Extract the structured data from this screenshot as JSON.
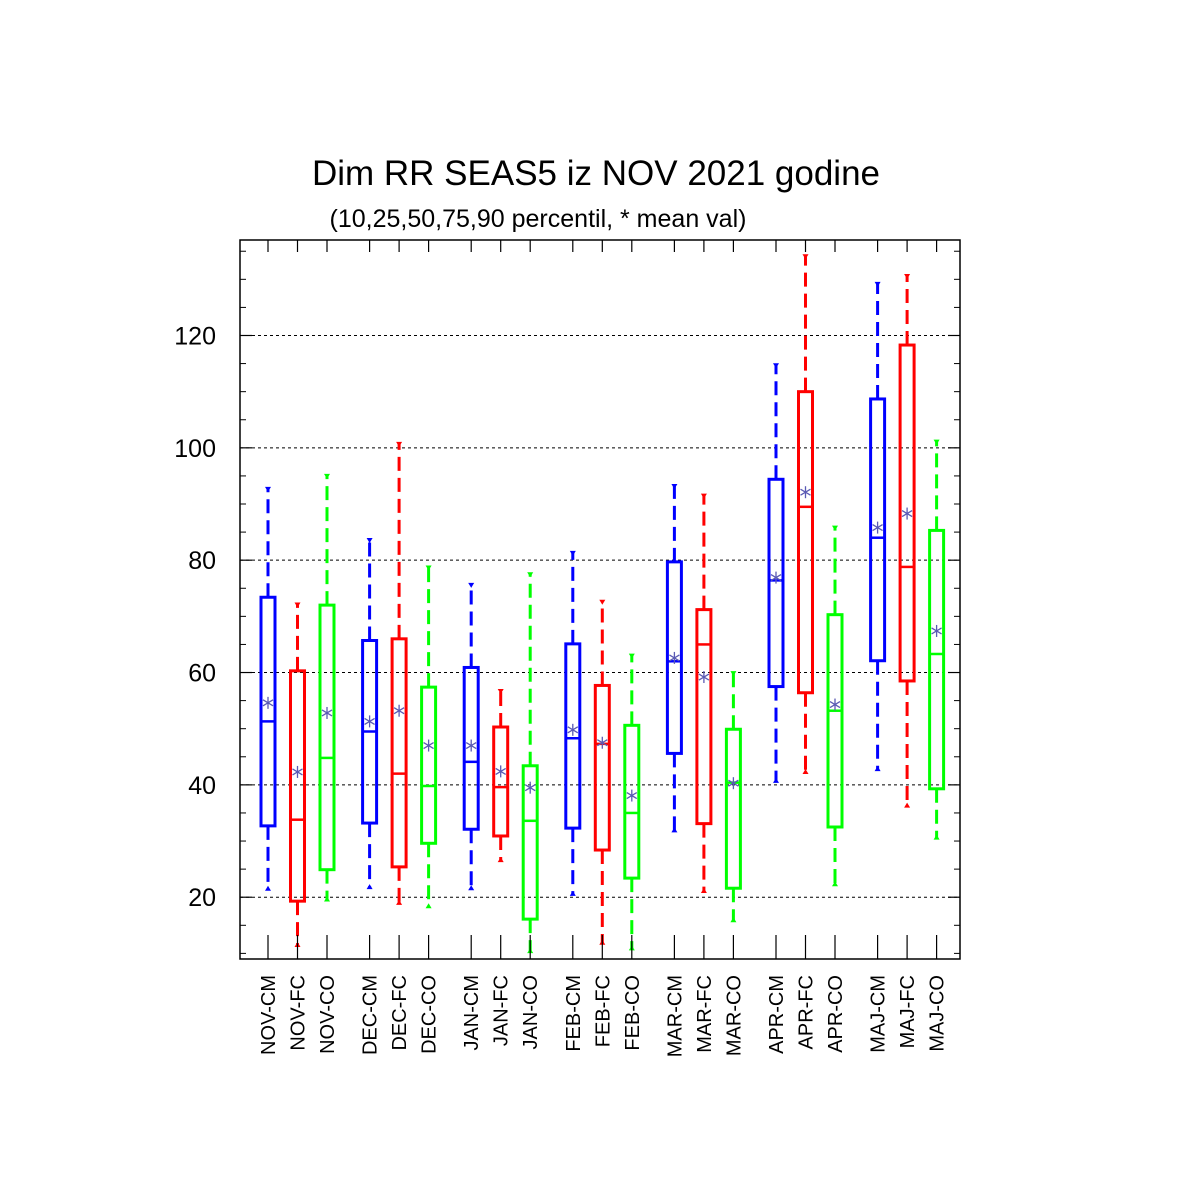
{
  "chart_data": {
    "type": "box",
    "title": "Dim RR SEAS5 iz NOV 2021 godine",
    "subtitle": "(10,25,50,75,90 percentil, * mean val)",
    "xlabel": "",
    "ylabel": "",
    "ylim": [
      9,
      137
    ],
    "yticks": [
      20,
      40,
      60,
      80,
      100,
      120
    ],
    "grid": true,
    "series_colors": {
      "CM": "#0000ff",
      "FC": "#ff0000",
      "CO": "#00ff00"
    },
    "mean_marker_color": "#5a5ab4",
    "groups": [
      "NOV",
      "DEC",
      "JAN",
      "FEB",
      "MAR",
      "APR",
      "MAJ"
    ],
    "boxes": [
      {
        "label": "NOV-CM",
        "group": 0,
        "slot": 0,
        "series": "CM",
        "p10": 21.5,
        "p25": 32.7,
        "p50": 51.3,
        "p75": 73.4,
        "p90": 92.7,
        "mean": 54.6
      },
      {
        "label": "NOV-FC",
        "group": 0,
        "slot": 1,
        "series": "FC",
        "p10": 11.5,
        "p25": 19.3,
        "p50": 33.8,
        "p75": 60.3,
        "p90": 72.1,
        "mean": 42.3
      },
      {
        "label": "NOV-CO",
        "group": 0,
        "slot": 2,
        "series": "CO",
        "p10": 19.6,
        "p25": 24.9,
        "p50": 44.8,
        "p75": 72.0,
        "p90": 95.0,
        "mean": 52.8
      },
      {
        "label": "DEC-CM",
        "group": 1,
        "slot": 0,
        "series": "CM",
        "p10": 21.8,
        "p25": 33.2,
        "p50": 49.5,
        "p75": 65.7,
        "p90": 83.6,
        "mean": 51.3
      },
      {
        "label": "DEC-FC",
        "group": 1,
        "slot": 1,
        "series": "FC",
        "p10": 19.0,
        "p25": 25.4,
        "p50": 42.0,
        "p75": 66.0,
        "p90": 100.7,
        "mean": 53.2
      },
      {
        "label": "DEC-CO",
        "group": 1,
        "slot": 2,
        "series": "CO",
        "p10": 18.4,
        "p25": 29.6,
        "p50": 39.8,
        "p75": 57.4,
        "p90": 78.7,
        "mean": 47.0
      },
      {
        "label": "JAN-CM",
        "group": 2,
        "slot": 0,
        "series": "CM",
        "p10": 21.6,
        "p25": 32.1,
        "p50": 44.1,
        "p75": 60.9,
        "p90": 75.6,
        "mean": 47.0
      },
      {
        "label": "JAN-FC",
        "group": 2,
        "slot": 1,
        "series": "FC",
        "p10": 26.6,
        "p25": 30.9,
        "p50": 39.6,
        "p75": 50.3,
        "p90": 56.7,
        "mean": 42.4
      },
      {
        "label": "JAN-CO",
        "group": 2,
        "slot": 2,
        "series": "CO",
        "p10": 10.4,
        "p25": 16.1,
        "p50": 33.6,
        "p75": 43.4,
        "p90": 77.5,
        "mean": 39.5
      },
      {
        "label": "FEB-CM",
        "group": 3,
        "slot": 0,
        "series": "CM",
        "p10": 20.6,
        "p25": 32.3,
        "p50": 48.3,
        "p75": 65.1,
        "p90": 81.3,
        "mean": 49.8
      },
      {
        "label": "FEB-FC",
        "group": 3,
        "slot": 1,
        "series": "FC",
        "p10": 11.9,
        "p25": 28.4,
        "p50": 47.3,
        "p75": 57.7,
        "p90": 72.6,
        "mean": 47.5
      },
      {
        "label": "FEB-CO",
        "group": 3,
        "slot": 2,
        "series": "CO",
        "p10": 10.9,
        "p25": 23.4,
        "p50": 35.0,
        "p75": 50.6,
        "p90": 63.0,
        "mean": 38.1
      },
      {
        "label": "MAR-CM",
        "group": 4,
        "slot": 0,
        "series": "CM",
        "p10": 31.9,
        "p25": 45.6,
        "p50": 62.0,
        "p75": 79.7,
        "p90": 93.2,
        "mean": 62.6
      },
      {
        "label": "MAR-FC",
        "group": 4,
        "slot": 1,
        "series": "FC",
        "p10": 21.1,
        "p25": 33.1,
        "p50": 65.0,
        "p75": 71.2,
        "p90": 91.5,
        "mean": 59.2
      },
      {
        "label": "MAR-CO",
        "group": 4,
        "slot": 2,
        "series": "CO",
        "p10": 15.9,
        "p25": 21.6,
        "p50": 40.4,
        "p75": 49.9,
        "p90": 59.9,
        "mean": 40.3
      },
      {
        "label": "APR-CM",
        "group": 5,
        "slot": 0,
        "series": "CM",
        "p10": 40.7,
        "p25": 57.5,
        "p50": 76.4,
        "p75": 94.4,
        "p90": 114.7,
        "mean": 76.9
      },
      {
        "label": "APR-FC",
        "group": 5,
        "slot": 1,
        "series": "FC",
        "p10": 42.3,
        "p25": 56.4,
        "p50": 89.5,
        "p75": 110.0,
        "p90": 134.1,
        "mean": 92.1
      },
      {
        "label": "APR-CO",
        "group": 5,
        "slot": 2,
        "series": "CO",
        "p10": 22.3,
        "p25": 32.5,
        "p50": 53.2,
        "p75": 70.3,
        "p90": 85.8,
        "mean": 54.3
      },
      {
        "label": "MAJ-CM",
        "group": 6,
        "slot": 0,
        "series": "CM",
        "p10": 42.8,
        "p25": 62.1,
        "p50": 84.0,
        "p75": 108.7,
        "p90": 129.2,
        "mean": 85.8
      },
      {
        "label": "MAJ-FC",
        "group": 6,
        "slot": 1,
        "series": "FC",
        "p10": 36.3,
        "p25": 58.5,
        "p50": 78.8,
        "p75": 118.3,
        "p90": 130.6,
        "mean": 88.3
      },
      {
        "label": "MAJ-CO",
        "group": 6,
        "slot": 2,
        "series": "CO",
        "p10": 30.6,
        "p25": 39.3,
        "p50": 63.3,
        "p75": 85.3,
        "p90": 101.1,
        "mean": 67.4
      }
    ]
  }
}
